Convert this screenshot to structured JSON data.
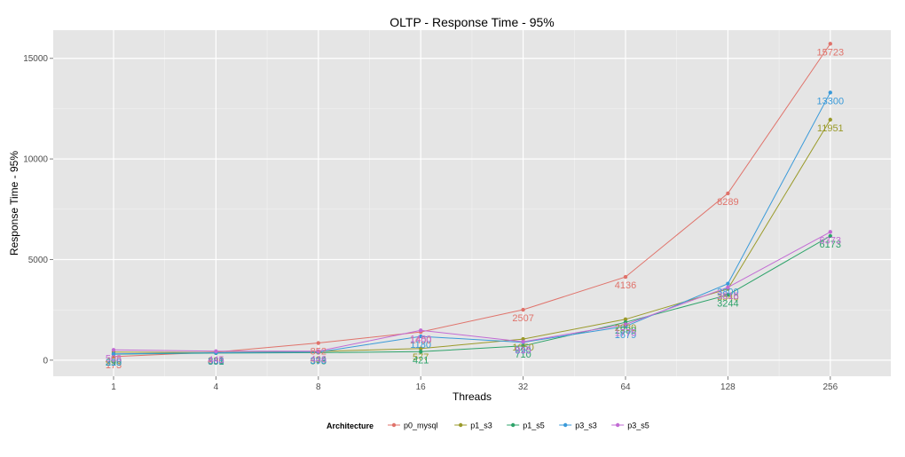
{
  "chart_data": {
    "type": "line",
    "title": "OLTP  - Response Time - 95%",
    "xlabel": "Threads",
    "ylabel": "Response Time - 95%",
    "categories": [
      "1",
      "4",
      "8",
      "16",
      "32",
      "64",
      "128",
      "256"
    ],
    "ylim": [
      -800,
      16400
    ],
    "yticks": [
      0,
      5000,
      10000,
      15000
    ],
    "ytick_labels": [
      "0",
      "5000",
      "10000",
      "15000"
    ],
    "grid": true,
    "legend": {
      "title": "Architecture",
      "position": "bottom"
    },
    "series": [
      {
        "name": "p0_mysql",
        "color": "#e0736b",
        "values": [
          173,
          400,
          852,
          1400,
          2507,
          4136,
          8289,
          15723
        ]
      },
      {
        "name": "p1_s3",
        "color": "#9a9a2a",
        "values": [
          400,
          381,
          434,
          577,
          1050,
          2030,
          3540,
          11951
        ]
      },
      {
        "name": "p1_s5",
        "color": "#2ea36a",
        "values": [
          298,
          351,
          373,
          421,
          710,
          1880,
          3244,
          6173
        ]
      },
      {
        "name": "p3_s3",
        "color": "#3a9ad9",
        "values": [
          310,
          368,
          398,
          1180,
          890,
          1679,
          3800,
          13300
        ]
      },
      {
        "name": "p3_s5",
        "color": "#c26bd4",
        "values": [
          508,
          445,
          446,
          1480,
          915,
          1775,
          3618,
          6373
        ]
      }
    ]
  }
}
